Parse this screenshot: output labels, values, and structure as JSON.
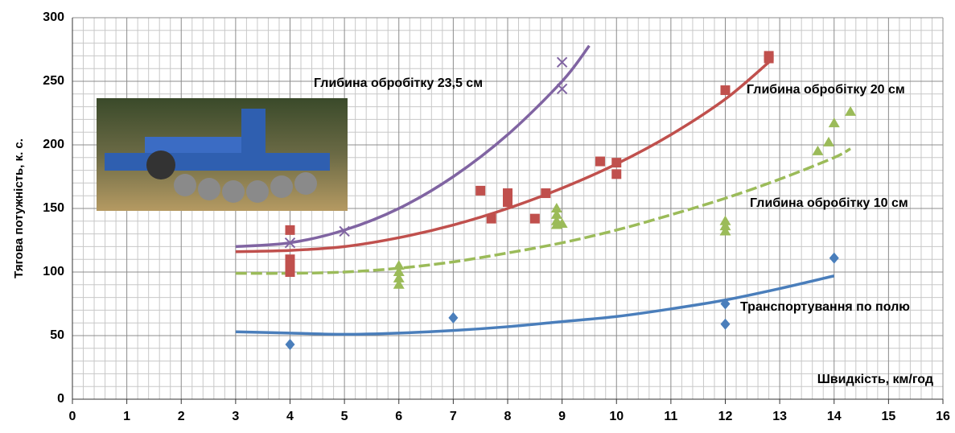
{
  "chart_data": {
    "type": "scatter",
    "xlabel": "Швидкість, км/год",
    "ylabel": "Тягова потужність, к. с.",
    "xlim": [
      0,
      16
    ],
    "ylim": [
      0,
      300
    ],
    "xticks": [
      0,
      1,
      2,
      3,
      4,
      5,
      6,
      7,
      8,
      9,
      10,
      11,
      12,
      13,
      14,
      15,
      16
    ],
    "yticks": [
      0,
      50,
      100,
      150,
      200,
      250,
      300
    ],
    "grid": true,
    "series": [
      {
        "name": "Транспортування по полю",
        "color": "#4a7ebb",
        "marker": "diamond",
        "x": [
          4,
          7,
          12,
          12,
          14
        ],
        "values": [
          43,
          64,
          75,
          59,
          111
        ],
        "trend": {
          "x": [
            3,
            4,
            5,
            6,
            7,
            8,
            9,
            10,
            11,
            12,
            13,
            14
          ],
          "values": [
            53,
            52,
            51,
            52,
            54,
            57,
            61,
            65,
            71,
            78,
            87,
            97
          ],
          "dashed": false
        }
      },
      {
        "name": "Глибина обробітку 10 см",
        "color": "#9bbb59",
        "marker": "triangle",
        "x": [
          6,
          6,
          6,
          6,
          8.9,
          8.9,
          8.9,
          8.9,
          9,
          12,
          12,
          12,
          13.7,
          13.9,
          14,
          14.3
        ],
        "values": [
          105,
          100,
          95,
          90,
          150,
          145,
          140,
          137,
          138,
          140,
          136,
          132,
          195,
          202,
          217,
          226
        ],
        "trend": {
          "x": [
            3,
            4,
            5,
            6,
            7,
            8,
            9,
            10,
            11,
            12,
            13,
            14,
            14.3
          ],
          "values": [
            99,
            99,
            100,
            103,
            108,
            115,
            123,
            133,
            145,
            158,
            173,
            190,
            197
          ],
          "dashed": true
        }
      },
      {
        "name": "Глибина обробітку 20 см",
        "color": "#c0504d",
        "marker": "square",
        "x": [
          4,
          4,
          4,
          4,
          7.5,
          7.7,
          8,
          8,
          8,
          8.5,
          8.7,
          9.7,
          10,
          10,
          12,
          12.8,
          12.8
        ],
        "values": [
          133,
          110,
          105,
          100,
          164,
          142,
          162,
          158,
          155,
          142,
          162,
          187,
          186,
          177,
          243,
          270,
          268
        ],
        "trend": {
          "x": [
            3,
            4,
            5,
            6,
            7,
            8,
            9,
            10,
            11,
            12,
            12.8
          ],
          "values": [
            116,
            117,
            120,
            127,
            137,
            150,
            166,
            185,
            208,
            236,
            265
          ],
          "dashed": false
        }
      },
      {
        "name": "Глибина обробітку 23,5 см",
        "color": "#8064a2",
        "marker": "x",
        "x": [
          4,
          5,
          9,
          9
        ],
        "values": [
          123,
          132,
          265,
          244
        ],
        "trend": {
          "x": [
            3,
            4,
            5,
            6,
            7,
            8,
            9,
            9.5
          ],
          "values": [
            120,
            123,
            133,
            150,
            175,
            208,
            250,
            278
          ],
          "dashed": false
        }
      }
    ]
  }
}
